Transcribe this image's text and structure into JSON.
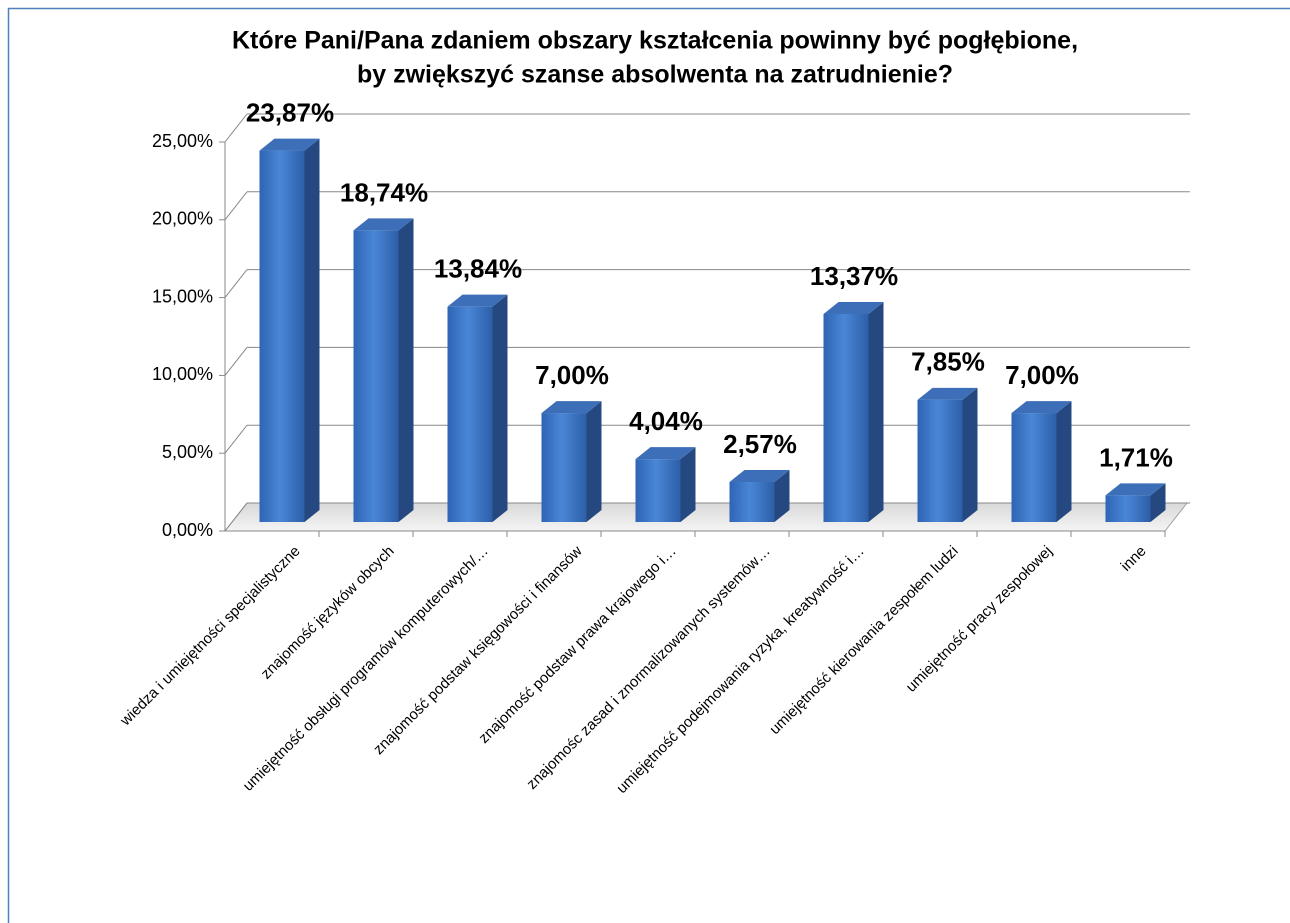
{
  "chart_data": {
    "type": "bar3d",
    "title": [
      "Które Pani/Pana zdaniem obszary kształcenia powinny być pogłębione,",
      "by zwiększyć szanse absolwenta na zatrudnienie?"
    ],
    "categories": [
      "wiedza i umiejętności specjalistyczne",
      "znajomość języków obcych",
      "umiejętność obsługi programów komputerowych/…",
      "znajomość podstaw księgowości i finansów",
      "znajomość podstaw prawa krajowego i…",
      "znajomośc zasad i znormalizowanych systemów…",
      "umiejętność podejmowania ryzyka, kreatywność i…",
      "umiejętność kierowania zespołem ludzi",
      "umiejętność pracy zespołowej",
      "inne"
    ],
    "values": [
      23.87,
      18.74,
      13.84,
      7.0,
      4.04,
      2.57,
      13.37,
      7.85,
      7.0,
      1.71
    ],
    "value_labels": [
      "23,87%",
      "18,74%",
      "13,84%",
      "7,00%",
      "4,04%",
      "2,57%",
      "13,37%",
      "7,85%",
      "7,00%",
      "1,71%"
    ],
    "color": "#3a75c9",
    "ylim": [
      0,
      25
    ],
    "yticks": [
      {
        "value": 0,
        "label": "0,00%"
      },
      {
        "value": 5,
        "label": "5,00%"
      },
      {
        "value": 10,
        "label": "10,00%"
      },
      {
        "value": 15,
        "label": "15,00%"
      },
      {
        "value": 20,
        "label": "20,00%"
      },
      {
        "value": 25,
        "label": "25,00%"
      }
    ],
    "grid": true
  }
}
